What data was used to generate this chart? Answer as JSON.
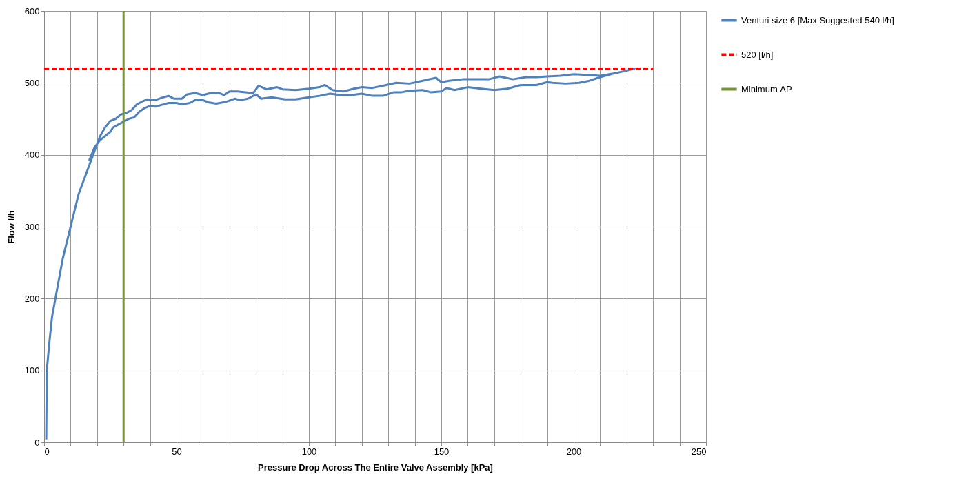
{
  "chart_data": {
    "type": "line",
    "xlabel": "Pressure Drop Across The Entire Valve Assembly [kPa]",
    "ylabel": "Flow l/h",
    "xlim": [
      0,
      250
    ],
    "ylim": [
      0,
      600
    ],
    "xticks": [
      0,
      {
        "value": 10,
        "label": null
      },
      {
        "value": 20,
        "label": null
      },
      {
        "value": 30,
        "label": null
      },
      {
        "value": 40,
        "label": null
      },
      50,
      {
        "value": 60,
        "label": null
      },
      {
        "value": 70,
        "label": null
      },
      {
        "value": 80,
        "label": null
      },
      {
        "value": 90,
        "label": null
      },
      100,
      {
        "value": 110,
        "label": null
      },
      {
        "value": 120,
        "label": null
      },
      {
        "value": 130,
        "label": null
      },
      {
        "value": 140,
        "label": null
      },
      150,
      {
        "value": 160,
        "label": null
      },
      {
        "value": 170,
        "label": null
      },
      {
        "value": 180,
        "label": null
      },
      {
        "value": 190,
        "label": null
      },
      200,
      {
        "value": 210,
        "label": null
      },
      {
        "value": 220,
        "label": null
      },
      {
        "value": 230,
        "label": null
      },
      {
        "value": 240,
        "label": null
      },
      250
    ],
    "yticks": [
      0,
      100,
      200,
      300,
      400,
      500,
      600
    ],
    "grid": true,
    "legend": "right",
    "marker": "none",
    "series": [
      {
        "name": "Venturi size 6 [Max Suggested 540 l/h]",
        "color": "#4f81bd",
        "line_style": "solid",
        "x": [
          0.8,
          1,
          2,
          3,
          5,
          7,
          9,
          11,
          13,
          15,
          17,
          19,
          21,
          23,
          25,
          27,
          29,
          31,
          33,
          35,
          37,
          39,
          42,
          45,
          47,
          49,
          52,
          54,
          57,
          60,
          63,
          66,
          68,
          70,
          73,
          76,
          79,
          81,
          84,
          88,
          90,
          95,
          100,
          104,
          106,
          109,
          113,
          117,
          120,
          124,
          128,
          133,
          138,
          143,
          148,
          150,
          153,
          158,
          163,
          168,
          172,
          177,
          182,
          186,
          190,
          195,
          200,
          205,
          210,
          215,
          220,
          223,
          220,
          215,
          210,
          206,
          202,
          197,
          192,
          190,
          186,
          180,
          175,
          170,
          165,
          160,
          155,
          152,
          150,
          146,
          143,
          138,
          135,
          132,
          128,
          124,
          120,
          116,
          112,
          108,
          104,
          100,
          95,
          91,
          86,
          82,
          80,
          77,
          74,
          72,
          69,
          65,
          62,
          60,
          57,
          55,
          52,
          50,
          47,
          45,
          42,
          40,
          38,
          36,
          34,
          32,
          30,
          28,
          26,
          25,
          23,
          21,
          19,
          17
        ],
        "values": [
          4,
          100,
          140,
          175,
          215,
          255,
          285,
          315,
          345,
          365,
          385,
          405,
          425,
          438,
          447,
          450,
          456,
          458,
          462,
          470,
          474,
          477,
          476,
          480,
          482,
          478,
          478,
          484,
          486,
          483,
          486,
          486,
          483,
          488,
          488,
          487,
          486,
          496,
          491,
          494,
          491,
          490,
          492,
          494,
          497,
          490,
          488,
          492,
          494,
          493,
          496,
          500,
          499,
          503,
          507,
          501,
          503,
          505,
          505,
          505,
          509,
          505,
          508,
          508,
          509,
          510,
          512,
          511,
          510,
          513,
          517,
          520,
          517,
          513,
          508,
          503,
          500,
          499,
          500,
          501,
          497,
          497,
          492,
          490,
          492,
          494,
          490,
          493,
          488,
          487,
          490,
          489,
          487,
          487,
          482,
          482,
          485,
          483,
          483,
          485,
          482,
          480,
          477,
          477,
          480,
          478,
          484,
          478,
          476,
          478,
          474,
          471,
          473,
          476,
          476,
          472,
          470,
          472,
          472,
          470,
          467,
          468,
          465,
          460,
          452,
          450,
          446,
          442,
          438,
          432,
          426,
          420,
          410,
          392
        ]
      },
      {
        "name": "520 [l/h]",
        "color": "#ff0000",
        "line_style": "dashed",
        "x": [
          0,
          230
        ],
        "values": [
          520,
          520
        ]
      },
      {
        "name": "Minimum ΔP",
        "color": "#77933c",
        "line_style": "solid",
        "x": [
          30,
          30
        ],
        "values": [
          0,
          600
        ]
      }
    ]
  }
}
